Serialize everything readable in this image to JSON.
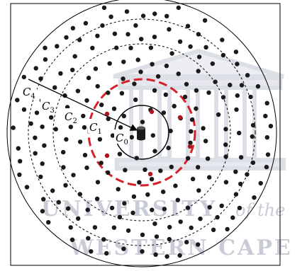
{
  "labels": {
    "c0": {
      "base": "C",
      "sub": "0"
    },
    "c1": {
      "base": "C",
      "sub": "1"
    },
    "c2": {
      "base": "C",
      "sub": "2"
    },
    "c3": {
      "base": "C",
      "sub": "3"
    },
    "c4": {
      "base": "C",
      "sub": "4"
    }
  },
  "watermark": {
    "line1": "UNIVERSITY",
    "line1_italic": "of the",
    "line2": "WESTERN CAPE"
  },
  "colors": {
    "node": "#1a1a1a",
    "highlight_node": "#b0141c",
    "highlight_ring": "#d6202a",
    "ring": "#000000",
    "watermark": "#c9cbd6"
  },
  "icons": {
    "base_station": "cylinder-icon"
  }
}
